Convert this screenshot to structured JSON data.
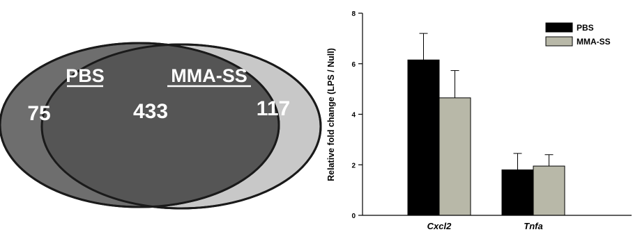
{
  "venn": {
    "set_a": {
      "name": "PBS",
      "unique": "75"
    },
    "set_b": {
      "name": "MMA-SS",
      "unique": "117"
    },
    "overlap": "433",
    "colors": {
      "a_only": "#6e6e6e",
      "b_only": "#c8c8c8",
      "overlap": "#555555"
    }
  },
  "chart_data": {
    "type": "bar",
    "categories": [
      "Cxcl2",
      "Tnfa"
    ],
    "ylabel": "Relative fold change (LPS / Null)",
    "xlabel": "",
    "ylim": [
      0,
      8
    ],
    "yticks": [
      "0",
      "2",
      "4",
      "6",
      "8"
    ],
    "series": [
      {
        "name": "PBS",
        "color": "#000000",
        "values": [
          6.15,
          1.8
        ],
        "errors": [
          1.05,
          0.65
        ]
      },
      {
        "name": "MMA-SS",
        "color": "#b8b8a8",
        "values": [
          4.65,
          1.95
        ],
        "errors": [
          1.08,
          0.45
        ]
      }
    ],
    "legend_position": "top-right",
    "grid": false
  }
}
